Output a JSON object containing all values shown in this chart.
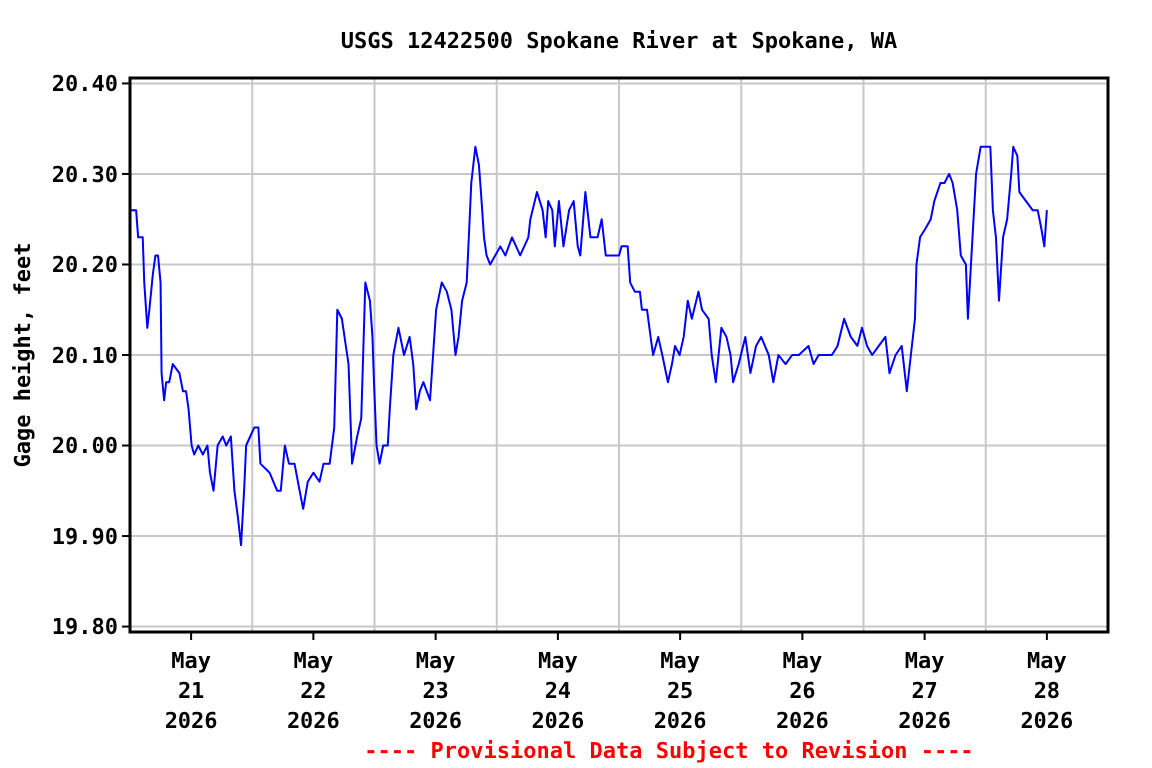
{
  "chart_data": {
    "type": "line",
    "title": "USGS 12422500 Spokane River at Spokane, WA",
    "ylabel": "Gage height, feet",
    "annotations": [
      "---- Provisional Data Subject to Revision ----"
    ],
    "x": [
      "2026-05-21T00:00",
      "2026-05-21T01:12",
      "2026-05-21T01:36",
      "2026-05-21T02:30",
      "2026-05-21T02:48",
      "2026-05-21T03:24",
      "2026-05-21T03:48",
      "2026-05-21T04:30",
      "2026-05-21T05:00",
      "2026-05-21T05:30",
      "2026-05-21T06:00",
      "2026-05-21T06:12",
      "2026-05-21T06:42",
      "2026-05-21T07:06",
      "2026-05-21T07:42",
      "2026-05-21T08:24",
      "2026-05-21T09:42",
      "2026-05-21T10:24",
      "2026-05-21T11:00",
      "2026-05-21T11:30",
      "2026-05-21T12:06",
      "2026-05-21T12:36",
      "2026-05-21T13:24",
      "2026-05-21T14:18",
      "2026-05-21T15:12",
      "2026-05-21T15:42",
      "2026-05-21T16:24",
      "2026-05-21T17:12",
      "2026-05-21T18:12",
      "2026-05-21T18:54",
      "2026-05-21T19:48",
      "2026-05-21T20:30",
      "2026-05-21T21:12",
      "2026-05-21T21:48",
      "2026-05-21T22:24",
      "2026-05-21T22:48",
      "2026-05-21T23:36",
      "2026-05-22T00:24",
      "2026-05-22T01:12",
      "2026-05-22T01:36",
      "2026-05-22T03:24",
      "2026-05-22T04:54",
      "2026-05-22T05:36",
      "2026-05-22T06:24",
      "2026-05-22T07:12",
      "2026-05-22T08:18",
      "2026-05-22T09:18",
      "2026-05-22T10:00",
      "2026-05-22T10:54",
      "2026-05-22T12:00",
      "2026-05-22T13:12",
      "2026-05-22T14:00",
      "2026-05-22T15:12",
      "2026-05-22T16:06",
      "2026-05-22T16:42",
      "2026-05-22T17:36",
      "2026-05-22T18:54",
      "2026-05-22T19:36",
      "2026-05-22T20:36",
      "2026-05-22T21:24",
      "2026-05-22T22:12",
      "2026-05-22T23:06",
      "2026-05-22T23:36",
      "2026-05-22T23:54",
      "2026-05-23T00:24",
      "2026-05-23T01:00",
      "2026-05-23T01:42",
      "2026-05-23T02:36",
      "2026-05-23T03:00",
      "2026-05-23T03:42",
      "2026-05-23T04:42",
      "2026-05-23T05:48",
      "2026-05-23T06:54",
      "2026-05-23T07:36",
      "2026-05-23T08:12",
      "2026-05-23T08:54",
      "2026-05-23T09:36",
      "2026-05-23T10:54",
      "2026-05-23T11:30",
      "2026-05-23T12:06",
      "2026-05-23T13:12",
      "2026-05-23T14:12",
      "2026-05-23T15:06",
      "2026-05-23T15:54",
      "2026-05-23T16:30",
      "2026-05-23T17:12",
      "2026-05-23T18:06",
      "2026-05-23T18:36",
      "2026-05-23T19:00",
      "2026-05-23T19:48",
      "2026-05-23T20:30",
      "2026-05-23T20:54",
      "2026-05-23T21:30",
      "2026-05-23T22:00",
      "2026-05-23T22:42",
      "2026-05-23T23:42",
      "2026-05-24T00:42",
      "2026-05-24T01:42",
      "2026-05-24T03:00",
      "2026-05-24T04:36",
      "2026-05-24T06:12",
      "2026-05-24T06:36",
      "2026-05-24T07:54",
      "2026-05-24T09:00",
      "2026-05-24T09:36",
      "2026-05-24T10:06",
      "2026-05-24T10:54",
      "2026-05-24T11:24",
      "2026-05-24T12:12",
      "2026-05-24T13:06",
      "2026-05-24T14:12",
      "2026-05-24T15:06",
      "2026-05-24T15:54",
      "2026-05-24T16:24",
      "2026-05-24T17:24",
      "2026-05-24T18:24",
      "2026-05-24T19:48",
      "2026-05-24T20:36",
      "2026-05-24T21:24",
      "2026-05-24T23:00",
      "2026-05-25T00:00",
      "2026-05-25T00:30",
      "2026-05-25T01:42",
      "2026-05-25T02:12",
      "2026-05-25T03:06",
      "2026-05-25T04:06",
      "2026-05-25T04:30",
      "2026-05-25T05:30",
      "2026-05-25T06:12",
      "2026-05-25T06:42",
      "2026-05-25T07:42",
      "2026-05-25T08:30",
      "2026-05-25T09:36",
      "2026-05-25T10:24",
      "2026-05-25T11:00",
      "2026-05-25T11:54",
      "2026-05-25T12:42",
      "2026-05-25T13:30",
      "2026-05-25T14:18",
      "2026-05-25T15:36",
      "2026-05-25T16:18",
      "2026-05-25T17:36",
      "2026-05-25T18:12",
      "2026-05-25T19:00",
      "2026-05-25T20:06",
      "2026-05-25T21:06",
      "2026-05-25T21:54",
      "2026-05-25T22:24",
      "2026-05-25T23:30",
      "2026-05-26T00:48",
      "2026-05-26T01:48",
      "2026-05-26T02:54",
      "2026-05-26T03:54",
      "2026-05-26T05:24",
      "2026-05-26T06:18",
      "2026-05-26T07:18",
      "2026-05-26T08:42",
      "2026-05-26T10:00",
      "2026-05-26T11:18",
      "2026-05-26T13:12",
      "2026-05-26T14:12",
      "2026-05-26T15:12",
      "2026-05-26T17:48",
      "2026-05-26T18:54",
      "2026-05-26T20:12",
      "2026-05-26T21:30",
      "2026-05-26T22:48",
      "2026-05-26T23:42",
      "2026-05-27T00:42",
      "2026-05-27T01:42",
      "2026-05-27T03:00",
      "2026-05-27T04:18",
      "2026-05-27T05:06",
      "2026-05-27T06:18",
      "2026-05-27T07:30",
      "2026-05-27T08:30",
      "2026-05-27T09:18",
      "2026-05-27T10:06",
      "2026-05-27T10:24",
      "2026-05-27T11:06",
      "2026-05-27T12:12",
      "2026-05-27T13:12",
      "2026-05-27T13:54",
      "2026-05-27T15:06",
      "2026-05-27T15:54",
      "2026-05-27T16:48",
      "2026-05-27T17:30",
      "2026-05-27T18:24",
      "2026-05-27T19:06",
      "2026-05-27T20:06",
      "2026-05-27T20:30",
      "2026-05-27T21:12",
      "2026-05-27T22:06",
      "2026-05-27T23:00",
      "2026-05-28T00:54",
      "2026-05-28T01:24",
      "2026-05-28T02:00",
      "2026-05-28T02:36",
      "2026-05-28T03:24",
      "2026-05-28T04:12",
      "2026-05-28T05:00",
      "2026-05-28T05:24",
      "2026-05-28T06:12",
      "2026-05-28T06:36",
      "2026-05-28T07:54",
      "2026-05-28T09:12",
      "2026-05-28T10:12",
      "2026-05-28T10:54",
      "2026-05-28T11:30",
      "2026-05-28T12:00"
    ],
    "series": [
      {
        "color": "#0000ff",
        "values": [
          20.26,
          20.26,
          20.23,
          20.23,
          20.18,
          20.13,
          20.15,
          20.19,
          20.21,
          20.21,
          20.18,
          20.08,
          20.05,
          20.07,
          20.07,
          20.09,
          20.08,
          20.06,
          20.06,
          20.04,
          20.0,
          19.99,
          20.0,
          19.99,
          20.0,
          19.97,
          19.95,
          20.0,
          20.01,
          20.0,
          20.01,
          19.95,
          19.92,
          19.89,
          19.95,
          20.0,
          20.01,
          20.02,
          20.02,
          19.98,
          19.97,
          19.95,
          19.95,
          20.0,
          19.98,
          19.98,
          19.95,
          19.93,
          19.96,
          19.97,
          19.96,
          19.98,
          19.98,
          20.02,
          20.15,
          20.14,
          20.09,
          19.98,
          20.01,
          20.03,
          20.18,
          20.16,
          20.12,
          20.07,
          20.0,
          19.98,
          20.0,
          20.0,
          20.04,
          20.1,
          20.13,
          20.1,
          20.12,
          20.09,
          20.04,
          20.06,
          20.07,
          20.05,
          20.1,
          20.15,
          20.18,
          20.17,
          20.15,
          20.1,
          20.12,
          20.16,
          20.18,
          20.24,
          20.29,
          20.33,
          20.31,
          20.28,
          20.23,
          20.21,
          20.2,
          20.21,
          20.22,
          20.21,
          20.23,
          20.21,
          20.23,
          20.25,
          20.28,
          20.26,
          20.23,
          20.27,
          20.26,
          20.22,
          20.27,
          20.22,
          20.26,
          20.27,
          20.22,
          20.21,
          20.28,
          20.23,
          20.23,
          20.25,
          20.21,
          20.21,
          20.21,
          20.22,
          20.22,
          20.18,
          20.17,
          20.17,
          20.15,
          20.15,
          20.12,
          20.1,
          20.12,
          20.1,
          20.07,
          20.09,
          20.11,
          20.1,
          20.12,
          20.16,
          20.14,
          20.17,
          20.15,
          20.14,
          20.1,
          20.07,
          20.13,
          20.12,
          20.1,
          20.07,
          20.09,
          20.12,
          20.08,
          20.11,
          20.12,
          20.1,
          20.07,
          20.1,
          20.09,
          20.1,
          20.1,
          20.11,
          20.09,
          20.1,
          20.1,
          20.11,
          20.14,
          20.12,
          20.11,
          20.13,
          20.11,
          20.1,
          20.11,
          20.12,
          20.08,
          20.1,
          20.11,
          20.06,
          20.1,
          20.14,
          20.2,
          20.23,
          20.24,
          20.25,
          20.27,
          20.29,
          20.29,
          20.3,
          20.29,
          20.26,
          20.21,
          20.2,
          20.14,
          20.21,
          20.3,
          20.33,
          20.33,
          20.26,
          20.23,
          20.16,
          20.23,
          20.25,
          20.3,
          20.33,
          20.32,
          20.28,
          20.27,
          20.26,
          20.26,
          20.24,
          20.22,
          20.26
        ]
      }
    ],
    "xlim": [
      "2026-05-21T00:00",
      "2026-05-29T00:00"
    ],
    "xticks": [
      {
        "value": "2026-05-21T12:00",
        "label": "May\n21\n2026"
      },
      {
        "value": "2026-05-22T00:00",
        "label": null
      },
      {
        "value": "2026-05-22T12:00",
        "label": "May\n22\n2026"
      },
      {
        "value": "2026-05-23T00:00",
        "label": null
      },
      {
        "value": "2026-05-23T12:00",
        "label": "May\n23\n2026"
      },
      {
        "value": "2026-05-24T00:00",
        "label": null
      },
      {
        "value": "2026-05-24T12:00",
        "label": "May\n24\n2026"
      },
      {
        "value": "2026-05-25T00:00",
        "label": null
      },
      {
        "value": "2026-05-25T12:00",
        "label": "May\n25\n2026"
      },
      {
        "value": "2026-05-26T00:00",
        "label": null
      },
      {
        "value": "2026-05-26T12:00",
        "label": "May\n26\n2026"
      },
      {
        "value": "2026-05-27T00:00",
        "label": null
      },
      {
        "value": "2026-05-27T12:00",
        "label": "May\n27\n2026"
      },
      {
        "value": "2026-05-28T00:00",
        "label": null
      },
      {
        "value": "2026-05-28T12:00",
        "label": "May\n28\n2026"
      }
    ],
    "ylim": [
      19.794,
      20.406
    ],
    "yticks": [
      {
        "value": 19.8,
        "label": "19.80"
      },
      {
        "value": 19.9,
        "label": "19.90"
      },
      {
        "value": 20.0,
        "label": "20.00"
      },
      {
        "value": 20.1,
        "label": "20.10"
      },
      {
        "value": 20.2,
        "label": "20.20"
      },
      {
        "value": 20.3,
        "label": "20.30"
      },
      {
        "value": 20.4,
        "label": "20.40"
      }
    ],
    "grid": true,
    "line_style": "solid"
  }
}
